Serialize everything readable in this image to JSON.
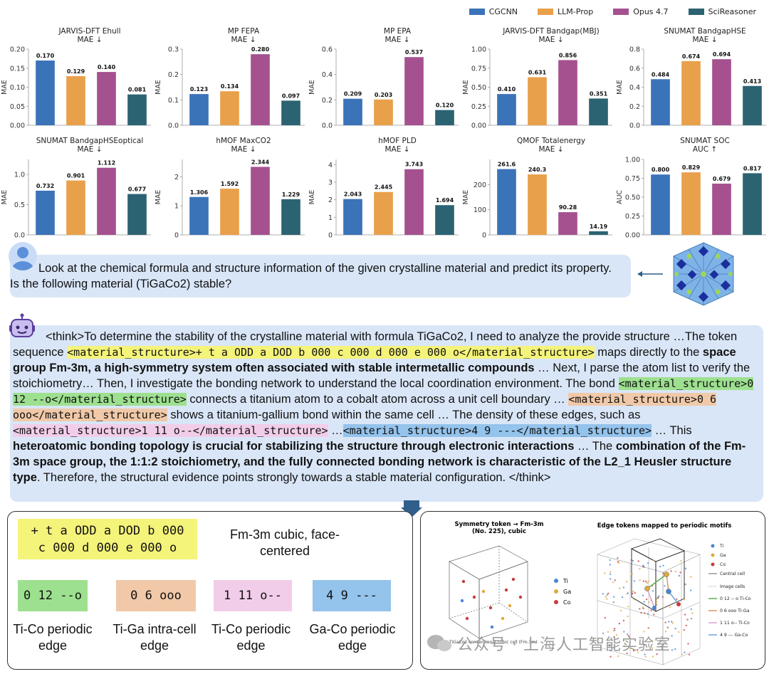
{
  "legend": [
    {
      "name": "CGCNN",
      "color": "#3b73b9"
    },
    {
      "name": "LLM-Prop",
      "color": "#e9a04b"
    },
    {
      "name": "Opus 4.7",
      "color": "#a5518f"
    },
    {
      "name": "SciReasoner",
      "color": "#2c6373"
    }
  ],
  "chart_data": [
    {
      "type": "bar",
      "title": "JARVIS-DFT Ehull",
      "subtitle": "MAE ↓",
      "ylabel": "MAE",
      "ylim": [
        0,
        0.2
      ],
      "yticks": [
        "0.00",
        "0.05",
        "0.10",
        "0.15",
        "0.20"
      ],
      "categories": [
        "CGCNN",
        "LLM-Prop",
        "Opus 4.7",
        "SciReasoner"
      ],
      "values": [
        0.17,
        0.129,
        0.14,
        0.081
      ],
      "labels": [
        "0.170",
        "0.129",
        "0.140",
        "0.081"
      ]
    },
    {
      "type": "bar",
      "title": "MP FEPA",
      "subtitle": "MAE ↓",
      "ylabel": "MAE",
      "ylim": [
        0,
        0.3
      ],
      "yticks": [
        "0.0",
        "0.1",
        "0.2",
        "0.3"
      ],
      "categories": [
        "CGCNN",
        "LLM-Prop",
        "Opus 4.7",
        "SciReasoner"
      ],
      "values": [
        0.123,
        0.134,
        0.28,
        0.097
      ],
      "labels": [
        "0.123",
        "0.134",
        "0.280",
        "0.097"
      ]
    },
    {
      "type": "bar",
      "title": "MP EPA",
      "subtitle": "MAE ↓",
      "ylabel": "MAE",
      "ylim": [
        0,
        0.6
      ],
      "yticks": [
        "0.0",
        "0.2",
        "0.4",
        "0.6"
      ],
      "categories": [
        "CGCNN",
        "LLM-Prop",
        "Opus 4.7",
        "SciReasoner"
      ],
      "values": [
        0.209,
        0.203,
        0.537,
        0.12
      ],
      "labels": [
        "0.209",
        "0.203",
        "0.537",
        "0.120"
      ]
    },
    {
      "type": "bar",
      "title": "JARVIS-DFT Bandgap(MBJ)",
      "subtitle": "MAE ↓",
      "ylabel": "MAE",
      "ylim": [
        0,
        1.0
      ],
      "yticks": [
        "0.00",
        "0.25",
        "0.50",
        "0.75",
        "1.00"
      ],
      "categories": [
        "CGCNN",
        "LLM-Prop",
        "Opus 4.7",
        "SciReasoner"
      ],
      "values": [
        0.41,
        0.631,
        0.856,
        0.351
      ],
      "labels": [
        "0.410",
        "0.631",
        "0.856",
        "0.351"
      ]
    },
    {
      "type": "bar",
      "title": "SNUMAT BandgapHSE",
      "subtitle": "MAE ↓",
      "ylabel": "MAE",
      "ylim": [
        0,
        0.8
      ],
      "yticks": [
        "0.0",
        "0.2",
        "0.4",
        "0.6",
        "0.8"
      ],
      "categories": [
        "CGCNN",
        "LLM-Prop",
        "Opus 4.7",
        "SciReasoner"
      ],
      "values": [
        0.484,
        0.674,
        0.694,
        0.413
      ],
      "labels": [
        "0.484",
        "0.674",
        "0.694",
        "0.413"
      ]
    },
    {
      "type": "bar",
      "title": "SNUMAT BandgapHSEoptical",
      "subtitle": "MAE ↓",
      "ylabel": "MAE",
      "ylim": [
        0,
        1.25
      ],
      "yticks": [
        "0.0",
        "0.5",
        "1.0"
      ],
      "ytickvals": [
        0,
        0.5,
        1.0
      ],
      "categories": [
        "CGCNN",
        "LLM-Prop",
        "Opus 4.7",
        "SciReasoner"
      ],
      "values": [
        0.732,
        0.901,
        1.112,
        0.677
      ],
      "labels": [
        "0.732",
        "0.901",
        "1.112",
        "0.677"
      ]
    },
    {
      "type": "bar",
      "title": "hMOF MaxCO2",
      "subtitle": "MAE ↓",
      "ylabel": "MAE",
      "ylim": [
        0,
        2.6
      ],
      "yticks": [
        "0",
        "1",
        "2"
      ],
      "ytickvals": [
        0,
        1,
        2
      ],
      "categories": [
        "CGCNN",
        "LLM-Prop",
        "Opus 4.7",
        "SciReasoner"
      ],
      "values": [
        1.306,
        1.592,
        2.344,
        1.229
      ],
      "labels": [
        "1.306",
        "1.592",
        "2.344",
        "1.229"
      ]
    },
    {
      "type": "bar",
      "title": "hMOF PLD",
      "subtitle": "MAE ↓",
      "ylabel": "MAE",
      "ylim": [
        0,
        4.3
      ],
      "yticks": [
        "0",
        "1",
        "2",
        "3",
        "4"
      ],
      "ytickvals": [
        0,
        1,
        2,
        3,
        4
      ],
      "categories": [
        "CGCNN",
        "LLM-Prop",
        "Opus 4.7",
        "SciReasoner"
      ],
      "values": [
        2.043,
        2.445,
        3.743,
        1.694
      ],
      "labels": [
        "2.043",
        "2.445",
        "3.743",
        "1.694"
      ]
    },
    {
      "type": "bar",
      "title": "QMOF Totalenergy",
      "subtitle": "MAE ↓",
      "ylabel": "MAE",
      "ylim": [
        0,
        300
      ],
      "yticks": [
        "0",
        "100",
        "200"
      ],
      "ytickvals": [
        0,
        100,
        200
      ],
      "categories": [
        "CGCNN",
        "LLM-Prop",
        "Opus 4.7",
        "SciReasoner"
      ],
      "values": [
        261.6,
        240.3,
        90.28,
        14.19
      ],
      "labels": [
        "261.6",
        "240.3",
        "90.28",
        "14.19"
      ]
    },
    {
      "type": "bar",
      "title": "SNUMAT SOC",
      "subtitle": "AUC ↑",
      "ylabel": "AUC",
      "ylim": [
        0,
        1.0
      ],
      "yticks": [
        "0.00",
        "0.25",
        "0.50",
        "0.75",
        "1.00"
      ],
      "categories": [
        "CGCNN",
        "LLM-Prop",
        "Opus 4.7",
        "SciReasoner"
      ],
      "values": [
        0.8,
        0.829,
        0.679,
        0.817
      ],
      "labels": [
        "0.800",
        "0.829",
        "0.679",
        "0.817"
      ]
    }
  ],
  "user": {
    "question": "Look at the chemical formula and structure information of the given crystalline material and predict its property. Is the following material (TiGaCo2) stable?"
  },
  "bot": {
    "t01": "<think>To determine the stability of the crystalline material with formula TiGaCo2, I need to analyze the provide structure …The token sequence ",
    "tok_seq": "<material_structure>+ t a ODD a DOD b 000 c 000 d 000 e 000 o</material_structure>",
    "t02": " maps directly to the ",
    "b01": "space group Fm-3m, a high-symmetry system often associated with stable intermetallic compounds",
    "t03": " … Next, I parse the atom list to verify the stoichiometry… Then, I investigate the bonding network to understand the local coordination environment. The bond ",
    "tok_green": "<material_structure>0 12 --o</material_structure>",
    "t04": " connects a titanium atom to a cobalt atom across a unit cell boundary … ",
    "tok_orange": "<material_structure>0 6 ooo</material_structure>",
    "t05": " shows a titanium-gallium bond within the same cell …  The density of these edges, such as ",
    "tok_pink": "<material_structure>1 11 o--</material_structure>",
    "t06": " …",
    "tok_blue": "<material_structure>4 9 ---</material_structure>",
    "t07": " …  This ",
    "b02": "heteroatomic bonding topology is crucial for stabilizing the structure through electronic interactions",
    "t08": " …  The ",
    "b03": "combination of the Fm-3m space group, the 1:1:2 stoichiometry, and the fully connected bonding network is characteristic of the L2_1 Heusler structure type",
    "t09": ". Therefore, the structural evidence points strongly towards a stable material configuration. </think>"
  },
  "tokens": {
    "big_line1": "+ t a ODD a DOD b 000",
    "big_line2": "c 000 d 000 e 000 o",
    "space_group": "Fm-3m cubic, face-centered",
    "edge1": "0 12 --o",
    "edge2": "0 6 ooo",
    "edge3": "1 11 o--",
    "edge4": "4 9 ---",
    "cap1": "Ti-Co periodic edge",
    "cap2": "Ti-Ga intra-cell edge",
    "cap3": "Ti-Co periodic edge",
    "cap4": "Ga-Co periodic edge"
  },
  "right_panel": {
    "title1_line1": "Symmetry token → Fm-3m",
    "title1_line2": "(No. 225), cubic",
    "title2": "Edge tokens mapped to periodic motifs",
    "legend1": [
      "Ti",
      "Ga",
      "Co"
    ],
    "legend2": [
      "Ti",
      "Ga",
      "Co",
      "Central cell",
      "Image cells",
      "0 12 -- o Ti-Co",
      "0 6 ooo Ti-Ga",
      "1 11 o-- Ti-Co",
      "4 9 --- Ga-Co"
    ],
    "conv_cell_caption": "TiGaCo2 conventional cubic cell (Fm-3m)",
    "colors": {
      "Ti": "#4a86d0",
      "Ga": "#e0a93a",
      "Co": "#c83c3c"
    }
  },
  "watermark": "公众号 · 上海人工智能实验室"
}
